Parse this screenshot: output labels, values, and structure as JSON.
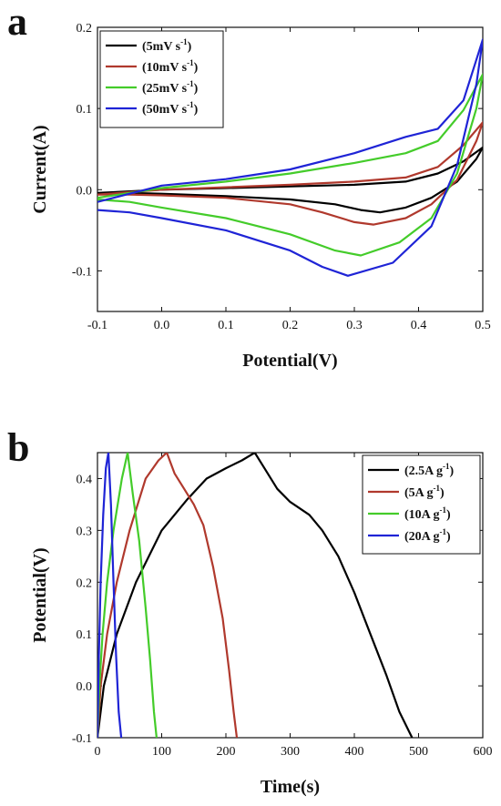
{
  "panels": {
    "a": {
      "letter": "a"
    },
    "b": {
      "letter": "b"
    }
  },
  "chart_data": [
    {
      "type": "line",
      "panel": "a",
      "xlabel": "Potential(V)",
      "ylabel": "Current(A)",
      "xlim": [
        -0.1,
        0.5
      ],
      "ylim": [
        -0.15,
        0.2
      ],
      "xticks": [
        -0.1,
        0.0,
        0.1,
        0.2,
        0.3,
        0.4,
        0.5
      ],
      "yticks": [
        -0.1,
        0.0,
        0.1,
        0.2
      ],
      "xtick_labels": [
        "-0.1",
        "0.0",
        "0.1",
        "0.2",
        "0.3",
        "0.4",
        "0.5"
      ],
      "ytick_labels": [
        "-0.1",
        "0.0",
        "0.1",
        "0.2"
      ],
      "legend_position": "top-left",
      "series": [
        {
          "name": "(5mV s-1)",
          "legend_base": "(5mV s",
          "legend_sup": "-1",
          "legend_close": ")",
          "color": "#000000",
          "x": [
            -0.1,
            -0.05,
            0.0,
            0.1,
            0.2,
            0.3,
            0.38,
            0.43,
            0.47,
            0.5,
            0.49,
            0.46,
            0.42,
            0.38,
            0.34,
            0.31,
            0.27,
            0.2,
            0.1,
            0.0,
            -0.05,
            -0.1
          ],
          "y": [
            -0.004,
            -0.002,
            0.0,
            0.002,
            0.004,
            0.006,
            0.01,
            0.02,
            0.035,
            0.052,
            0.038,
            0.01,
            -0.01,
            -0.022,
            -0.028,
            -0.025,
            -0.018,
            -0.012,
            -0.008,
            -0.005,
            -0.004,
            -0.004
          ]
        },
        {
          "name": "(10mV s-1)",
          "legend_base": "(10mV s",
          "legend_sup": "-1",
          "legend_close": ")",
          "color": "#b0392d",
          "x": [
            -0.1,
            -0.05,
            0.0,
            0.1,
            0.2,
            0.3,
            0.38,
            0.43,
            0.47,
            0.5,
            0.49,
            0.46,
            0.42,
            0.38,
            0.33,
            0.3,
            0.25,
            0.2,
            0.1,
            0.0,
            -0.05,
            -0.1
          ],
          "y": [
            -0.006,
            -0.003,
            0.0,
            0.003,
            0.006,
            0.01,
            0.015,
            0.028,
            0.055,
            0.083,
            0.06,
            0.012,
            -0.018,
            -0.035,
            -0.043,
            -0.04,
            -0.028,
            -0.018,
            -0.01,
            -0.007,
            -0.006,
            -0.006
          ]
        },
        {
          "name": "(25mV s-1)",
          "legend_base": "(25mV s",
          "legend_sup": "-1",
          "legend_close": ")",
          "color": "#44cc2a",
          "x": [
            -0.1,
            -0.05,
            0.0,
            0.1,
            0.2,
            0.3,
            0.38,
            0.43,
            0.47,
            0.5,
            0.49,
            0.46,
            0.42,
            0.37,
            0.31,
            0.27,
            0.2,
            0.1,
            0.0,
            -0.05,
            -0.1
          ],
          "y": [
            -0.01,
            -0.004,
            0.002,
            0.01,
            0.02,
            0.033,
            0.045,
            0.06,
            0.098,
            0.142,
            0.1,
            0.02,
            -0.035,
            -0.065,
            -0.081,
            -0.075,
            -0.055,
            -0.035,
            -0.022,
            -0.015,
            -0.012
          ]
        },
        {
          "name": "(50mV s-1)",
          "legend_base": "(50mV s",
          "legend_sup": "-1",
          "legend_close": ")",
          "color": "#1f24d6",
          "x": [
            -0.1,
            -0.05,
            0.0,
            0.1,
            0.2,
            0.3,
            0.38,
            0.43,
            0.47,
            0.5,
            0.49,
            0.46,
            0.42,
            0.36,
            0.29,
            0.25,
            0.2,
            0.1,
            0.0,
            -0.05,
            -0.1
          ],
          "y": [
            -0.015,
            -0.005,
            0.005,
            0.013,
            0.025,
            0.045,
            0.065,
            0.075,
            0.11,
            0.185,
            0.13,
            0.03,
            -0.045,
            -0.09,
            -0.106,
            -0.095,
            -0.075,
            -0.05,
            -0.035,
            -0.028,
            -0.025
          ]
        }
      ]
    },
    {
      "type": "line",
      "panel": "b",
      "xlabel": "Time(s)",
      "ylabel": "Potential(V)",
      "xlim": [
        0,
        600
      ],
      "ylim": [
        -0.1,
        0.45
      ],
      "xticks": [
        0,
        100,
        200,
        300,
        400,
        500,
        600
      ],
      "yticks": [
        -0.1,
        0.0,
        0.1,
        0.2,
        0.3,
        0.4
      ],
      "xtick_labels": [
        "0",
        "100",
        "200",
        "300",
        "400",
        "500",
        "600"
      ],
      "ytick_labels": [
        "-0.1",
        "0.0",
        "0.1",
        "0.2",
        "0.3",
        "0.4"
      ],
      "legend_position": "top-right",
      "series": [
        {
          "name": "(2.5A g-1)",
          "legend_base": "(2.5A g",
          "legend_sup": "-1",
          "legend_close": ")",
          "color": "#000000",
          "x": [
            0,
            10,
            30,
            60,
            100,
            140,
            170,
            200,
            225,
            245,
            260,
            280,
            300,
            330,
            350,
            375,
            400,
            425,
            450,
            470,
            490
          ],
          "y": [
            -0.1,
            0.0,
            0.1,
            0.2,
            0.3,
            0.36,
            0.4,
            0.42,
            0.435,
            0.45,
            0.42,
            0.38,
            0.355,
            0.33,
            0.3,
            0.25,
            0.18,
            0.1,
            0.02,
            -0.05,
            -0.1
          ]
        },
        {
          "name": "(5A g-1)",
          "legend_base": "(5A g",
          "legend_sup": "-1",
          "legend_close": ")",
          "color": "#b0392d",
          "x": [
            0,
            5,
            15,
            30,
            50,
            75,
            95,
            108,
            120,
            135,
            150,
            165,
            180,
            195,
            205,
            212,
            217
          ],
          "y": [
            -0.1,
            0.0,
            0.1,
            0.2,
            0.3,
            0.4,
            0.435,
            0.45,
            0.41,
            0.38,
            0.35,
            0.31,
            0.23,
            0.13,
            0.03,
            -0.05,
            -0.1
          ]
        },
        {
          "name": "(10A g-1)",
          "legend_base": "(10A g",
          "legend_sup": "-1",
          "legend_close": ")",
          "color": "#44cc2a",
          "x": [
            0,
            3,
            8,
            15,
            25,
            38,
            47,
            55,
            65,
            75,
            82,
            88,
            92
          ],
          "y": [
            -0.1,
            0.0,
            0.1,
            0.2,
            0.3,
            0.4,
            0.45,
            0.37,
            0.28,
            0.15,
            0.05,
            -0.05,
            -0.1
          ]
        },
        {
          "name": "(20A g-1)",
          "legend_base": "(20A g",
          "legend_sup": "-1",
          "legend_close": ")",
          "color": "#1f24d6",
          "x": [
            0,
            2,
            5,
            9,
            13,
            17,
            21,
            25,
            29,
            33,
            37
          ],
          "y": [
            -0.1,
            0.05,
            0.2,
            0.33,
            0.42,
            0.45,
            0.35,
            0.2,
            0.06,
            -0.05,
            -0.1
          ]
        }
      ]
    }
  ]
}
